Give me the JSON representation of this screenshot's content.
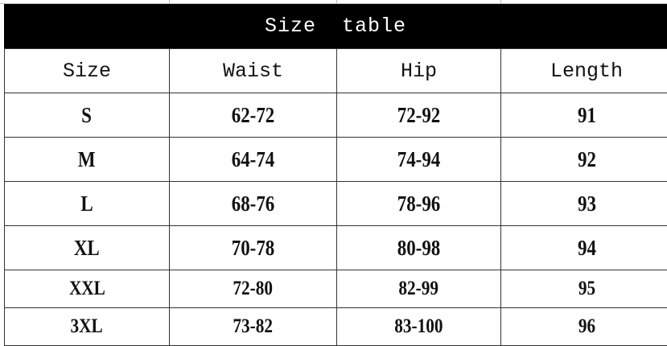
{
  "title": "Size  table",
  "headers": [
    "Size",
    "Waist",
    "Hip",
    "Length"
  ],
  "rows": [
    [
      "S",
      "62-72",
      "72-92",
      "91"
    ],
    [
      "M",
      "64-74",
      "74-94",
      "92"
    ],
    [
      "L",
      "68-76",
      "78-96",
      "93"
    ],
    [
      "XL",
      "70-78",
      "80-98",
      "94"
    ],
    [
      "XXL",
      "72-80",
      "82-99",
      "95"
    ],
    [
      "3XL",
      "73-82",
      "83-100",
      "96"
    ]
  ]
}
